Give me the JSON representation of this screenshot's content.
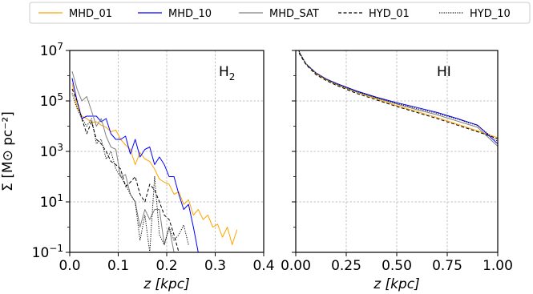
{
  "legend": [
    {
      "label": "MHD_01",
      "color": "#ffa500",
      "dash": "solid"
    },
    {
      "label": "MHD_10",
      "color": "#0000ff",
      "dash": "solid"
    },
    {
      "label": "MHD_SAT",
      "color": "#808080",
      "dash": "solid"
    },
    {
      "label": "HYD_01",
      "color": "#000000",
      "dash": "dashed"
    },
    {
      "label": "HYD_10",
      "color": "#000000",
      "dash": "dotted"
    }
  ],
  "chart_data": [
    {
      "type": "line",
      "panel_label": "H",
      "panel_label_sub": "2",
      "xlabel": "z [kpc]",
      "ylabel": "Σ [M⊙ pc⁻²]",
      "xlim": [
        0.0,
        0.4
      ],
      "ylim": [
        0.1,
        10000000
      ],
      "y_scale": "log",
      "grid": true,
      "xticks": [
        0.0,
        0.1,
        0.2,
        0.3,
        0.4
      ],
      "xtick_labels": [
        "0.0",
        "0.1",
        "0.2",
        "0.3",
        "0.4"
      ],
      "yticks": [
        0.1,
        10,
        1000,
        100000,
        10000000
      ],
      "ytick_labels": [
        {
          "base": "10",
          "exp": "−1"
        },
        {
          "base": "10",
          "exp": "1"
        },
        {
          "base": "10",
          "exp": "3"
        },
        {
          "base": "10",
          "exp": "5"
        },
        {
          "base": "10",
          "exp": "7"
        }
      ],
      "series": [
        {
          "name": "MHD_01",
          "x": [
            0.005,
            0.015,
            0.025,
            0.035,
            0.045,
            0.055,
            0.065,
            0.075,
            0.085,
            0.095,
            0.105,
            0.115,
            0.125,
            0.135,
            0.145,
            0.155,
            0.165,
            0.175,
            0.185,
            0.195,
            0.205,
            0.215,
            0.225,
            0.235,
            0.245,
            0.255,
            0.265,
            0.275,
            0.285,
            0.295,
            0.305,
            0.315,
            0.325,
            0.335,
            0.345
          ],
          "y": [
            500000,
            60000,
            25000,
            20000,
            14000,
            15000,
            11000,
            9000,
            6000,
            7000,
            3000,
            1800,
            1200,
            300,
            900,
            500,
            400,
            200,
            80,
            60,
            50,
            20,
            25,
            8,
            12,
            3,
            5,
            2,
            3,
            1,
            1.3,
            0.4,
            1,
            0.2,
            0.8
          ]
        },
        {
          "name": "MHD_10",
          "x": [
            0.005,
            0.015,
            0.025,
            0.035,
            0.045,
            0.055,
            0.065,
            0.075,
            0.085,
            0.095,
            0.105,
            0.115,
            0.125,
            0.135,
            0.145,
            0.155,
            0.165,
            0.175,
            0.185,
            0.195,
            0.205,
            0.215,
            0.225,
            0.235,
            0.245,
            0.255,
            0.265
          ],
          "y": [
            800000,
            100000,
            20000,
            25000,
            25000,
            25000,
            15000,
            20000,
            5000,
            3000,
            3000,
            4000,
            800,
            3000,
            600,
            1200,
            1500,
            300,
            600,
            300,
            100,
            100,
            20,
            5,
            8,
            1,
            0.1
          ]
        },
        {
          "name": "MHD_SAT",
          "x": [
            0.005,
            0.015,
            0.025,
            0.035,
            0.045,
            0.055,
            0.065,
            0.075,
            0.085,
            0.095,
            0.105,
            0.115,
            0.125,
            0.135,
            0.145,
            0.155,
            0.165,
            0.175,
            0.185,
            0.195,
            0.205,
            0.215
          ],
          "y": [
            1500000,
            300000,
            100000,
            150000,
            40000,
            10000,
            20000,
            4000,
            1500,
            1200,
            100,
            120,
            20,
            10,
            1,
            5,
            2,
            5,
            5,
            0.2,
            1,
            0.1
          ]
        },
        {
          "name": "HYD_01",
          "x": [
            0.005,
            0.015,
            0.025,
            0.035,
            0.045,
            0.055,
            0.065,
            0.075,
            0.085,
            0.095,
            0.105,
            0.115,
            0.125,
            0.135,
            0.145,
            0.155,
            0.165,
            0.175,
            0.185,
            0.195,
            0.205,
            0.215,
            0.225
          ],
          "y": [
            300000,
            100000,
            20000,
            5000,
            15000,
            3000,
            2000,
            1000,
            400,
            300,
            200,
            40,
            60,
            100,
            20,
            10,
            50,
            30,
            10,
            3,
            2,
            0.5,
            0.1
          ]
        },
        {
          "name": "HYD_10",
          "x": [
            0.005,
            0.015,
            0.025,
            0.035,
            0.045,
            0.055,
            0.065,
            0.075,
            0.085,
            0.095,
            0.105,
            0.115,
            0.125,
            0.135,
            0.145,
            0.155,
            0.165,
            0.175,
            0.185,
            0.195,
            0.205,
            0.215,
            0.225,
            0.235,
            0.245
          ],
          "y": [
            200000,
            50000,
            20000,
            10000,
            20000,
            2000,
            3000,
            500,
            1000,
            200,
            100,
            50,
            20,
            10,
            0.3,
            3,
            0.1,
            100,
            0.5,
            0.2,
            1,
            0.3,
            0.5,
            1.2,
            0.2
          ]
        }
      ]
    },
    {
      "type": "line",
      "panel_label": "HI",
      "xlabel": "z [kpc]",
      "xlim": [
        0.0,
        1.0
      ],
      "ylim": [
        0.1,
        10000000
      ],
      "y_scale": "log",
      "grid": true,
      "xticks": [
        0.0,
        0.25,
        0.5,
        0.75,
        1.0
      ],
      "xtick_labels": [
        "0.00",
        "0.25",
        "0.50",
        "0.75",
        "1.00"
      ],
      "series": [
        {
          "name": "MHD_01",
          "x": [
            0.0,
            0.02,
            0.05,
            0.1,
            0.15,
            0.2,
            0.3,
            0.4,
            0.5,
            0.6,
            0.7,
            0.8,
            0.9,
            1.0
          ],
          "y": [
            20000000,
            8000000,
            3000000,
            1200000,
            700000,
            450000,
            220000,
            120000,
            65000,
            38000,
            22000,
            12000,
            6500,
            3500
          ]
        },
        {
          "name": "MHD_10",
          "x": [
            0.0,
            0.02,
            0.05,
            0.1,
            0.15,
            0.2,
            0.3,
            0.4,
            0.5,
            0.6,
            0.7,
            0.8,
            0.9,
            1.0
          ],
          "y": [
            20000000,
            8000000,
            3000000,
            1300000,
            750000,
            500000,
            250000,
            140000,
            85000,
            55000,
            35000,
            20000,
            11000,
            2000
          ]
        },
        {
          "name": "MHD_SAT",
          "x": [
            0.0,
            0.02,
            0.05,
            0.1,
            0.15,
            0.2,
            0.3,
            0.4,
            0.5,
            0.6,
            0.7,
            0.8,
            0.9,
            1.0
          ],
          "y": [
            20000000,
            8000000,
            3000000,
            1250000,
            720000,
            470000,
            230000,
            130000,
            75000,
            45000,
            28000,
            16000,
            9000,
            1600
          ]
        },
        {
          "name": "HYD_01",
          "x": [
            0.0,
            0.02,
            0.05,
            0.1,
            0.15,
            0.2,
            0.3,
            0.4,
            0.5,
            0.6,
            0.7,
            0.8,
            0.9,
            1.0
          ],
          "y": [
            20000000,
            7000000,
            2800000,
            1100000,
            650000,
            420000,
            200000,
            110000,
            60000,
            35000,
            20000,
            11000,
            6000,
            3200
          ]
        },
        {
          "name": "HYD_10",
          "x": [
            0.0,
            0.02,
            0.05,
            0.1,
            0.15,
            0.2,
            0.3,
            0.4,
            0.5,
            0.6,
            0.7,
            0.8,
            0.9,
            1.0
          ],
          "y": [
            20000000,
            8000000,
            3000000,
            1250000,
            730000,
            480000,
            240000,
            135000,
            80000,
            50000,
            32000,
            19000,
            10500,
            2500
          ]
        }
      ]
    }
  ]
}
